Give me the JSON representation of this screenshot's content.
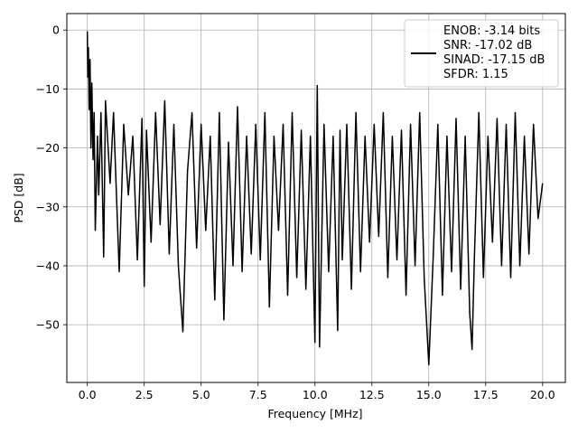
{
  "chart_data": {
    "type": "line",
    "title": "",
    "xlabel": "Frequency [MHz]",
    "ylabel": "PSD [dB]",
    "xlim": [
      -0.9,
      21.0
    ],
    "ylim": [
      -59.8,
      2.8
    ],
    "xticks": [
      0.0,
      2.5,
      5.0,
      7.5,
      10.0,
      12.5,
      15.0,
      17.5,
      20.0
    ],
    "xtick_labels": [
      "0.0",
      "2.5",
      "5.0",
      "7.5",
      "10.0",
      "12.5",
      "15.0",
      "17.5",
      "20.0"
    ],
    "yticks": [
      0,
      -10,
      -20,
      -30,
      -40,
      -50
    ],
    "ytick_labels": [
      "0",
      "−10",
      "−20",
      "−30",
      "−40",
      "−50"
    ],
    "grid": true,
    "legend": {
      "placement": "top-right",
      "lines": [
        "ENOB: -3.14 bits",
        "SNR: -17.02 dB",
        "SINAD: -17.15 dB",
        "SFDR: 1.15"
      ]
    },
    "series": [
      {
        "color": "#000000",
        "x": [
          0.0,
          0.02,
          0.05,
          0.08,
          0.12,
          0.16,
          0.2,
          0.25,
          0.3,
          0.35,
          0.45,
          0.5,
          0.6,
          0.72,
          0.8,
          1.0,
          1.15,
          1.4,
          1.6,
          1.8,
          2.0,
          2.2,
          2.4,
          2.5,
          2.6,
          2.8,
          3.0,
          3.2,
          3.4,
          3.6,
          3.8,
          4.0,
          4.2,
          4.4,
          4.6,
          4.8,
          5.0,
          5.2,
          5.4,
          5.6,
          5.8,
          6.0,
          6.2,
          6.4,
          6.6,
          6.8,
          7.0,
          7.2,
          7.4,
          7.6,
          7.8,
          8.0,
          8.2,
          8.4,
          8.6,
          8.8,
          9.0,
          9.2,
          9.4,
          9.6,
          9.8,
          10.0,
          10.1,
          10.2,
          10.4,
          10.6,
          10.8,
          11.0,
          11.1,
          11.2,
          11.4,
          11.6,
          11.8,
          12.0,
          12.2,
          12.4,
          12.6,
          12.8,
          13.0,
          13.2,
          13.4,
          13.6,
          13.8,
          14.0,
          14.2,
          14.4,
          14.6,
          14.8,
          15.0,
          15.2,
          15.4,
          15.6,
          15.8,
          16.0,
          16.2,
          16.4,
          16.6,
          16.8,
          16.9,
          17.0,
          17.2,
          17.4,
          17.6,
          17.8,
          18.0,
          18.2,
          18.4,
          18.6,
          18.8,
          19.0,
          19.2,
          19.4,
          19.6,
          19.8,
          20.0
        ],
        "y": [
          -0.2,
          -8.0,
          -3.0,
          -13.5,
          -5.0,
          -20.0,
          -9.0,
          -22.0,
          -14.0,
          -34.0,
          -18.0,
          -28.0,
          -14.0,
          -38.5,
          -12.0,
          -26.0,
          -14.0,
          -41.0,
          -16.0,
          -28.0,
          -18.0,
          -39.0,
          -15.0,
          -43.5,
          -17.0,
          -36.0,
          -14.0,
          -33.0,
          -12.0,
          -38.0,
          -16.0,
          -40.0,
          -51.2,
          -24.0,
          -14.0,
          -37.0,
          -16.0,
          -34.0,
          -18.0,
          -45.8,
          -14.0,
          -49.2,
          -19.0,
          -40.0,
          -13.0,
          -41.0,
          -18.0,
          -38.0,
          -16.0,
          -39.0,
          -14.0,
          -47.0,
          -18.0,
          -34.0,
          -16.0,
          -45.0,
          -14.0,
          -42.0,
          -17.0,
          -44.0,
          -18.0,
          -53.0,
          -9.4,
          -53.8,
          -16.0,
          -41.0,
          -18.0,
          -51.0,
          -17.0,
          -39.0,
          -16.0,
          -44.0,
          -14.0,
          -41.0,
          -18.0,
          -36.0,
          -16.0,
          -35.0,
          -14.0,
          -42.0,
          -18.0,
          -39.0,
          -17.0,
          -45.0,
          -16.0,
          -40.0,
          -14.0,
          -42.0,
          -56.8,
          -38.0,
          -16.0,
          -45.0,
          -18.0,
          -41.0,
          -15.0,
          -44.0,
          -18.0,
          -48.0,
          -54.2,
          -39.0,
          -14.0,
          -42.0,
          -18.0,
          -36.0,
          -15.0,
          -40.0,
          -16.0,
          -42.0,
          -14.0,
          -40.0,
          -18.0,
          -38.0,
          -16.0,
          -32.0,
          -26.0
        ]
      }
    ]
  }
}
